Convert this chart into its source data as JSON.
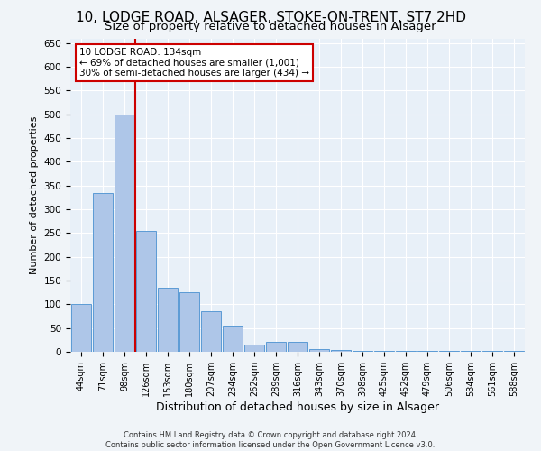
{
  "title_line1": "10, LODGE ROAD, ALSAGER, STOKE-ON-TRENT, ST7 2HD",
  "title_line2": "Size of property relative to detached houses in Alsager",
  "xlabel": "Distribution of detached houses by size in Alsager",
  "ylabel": "Number of detached properties",
  "categories": [
    "44sqm",
    "71sqm",
    "98sqm",
    "126sqm",
    "153sqm",
    "180sqm",
    "207sqm",
    "234sqm",
    "262sqm",
    "289sqm",
    "316sqm",
    "343sqm",
    "370sqm",
    "398sqm",
    "425sqm",
    "452sqm",
    "479sqm",
    "506sqm",
    "534sqm",
    "561sqm",
    "588sqm"
  ],
  "values": [
    100,
    335,
    500,
    255,
    135,
    125,
    85,
    55,
    15,
    20,
    20,
    5,
    4,
    2,
    2,
    2,
    2,
    1,
    1,
    1,
    1
  ],
  "bar_color": "#aec6e8",
  "bar_edge_color": "#5b9bd5",
  "vline_color": "#cc0000",
  "annotation_text": "10 LODGE ROAD: 134sqm\n← 69% of detached houses are smaller (1,001)\n30% of semi-detached houses are larger (434) →",
  "annotation_box_color": "#ffffff",
  "annotation_box_edge_color": "#cc0000",
  "ylim": [
    0,
    660
  ],
  "yticks": [
    0,
    50,
    100,
    150,
    200,
    250,
    300,
    350,
    400,
    450,
    500,
    550,
    600,
    650
  ],
  "bg_color": "#e8f0f8",
  "grid_color": "#ffffff",
  "footer_text": "Contains HM Land Registry data © Crown copyright and database right 2024.\nContains public sector information licensed under the Open Government Licence v3.0.",
  "title1_fontsize": 11,
  "title2_fontsize": 9.5,
  "fig_bg_color": "#f0f4f8"
}
